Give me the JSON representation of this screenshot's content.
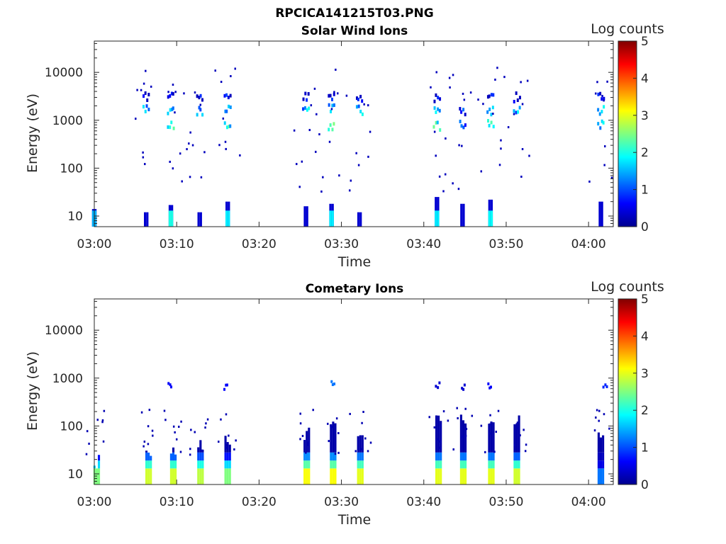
{
  "figure_title": "RPCICA141215T03.PNG",
  "chart_data": [
    {
      "type": "heatmap",
      "title": "Solar Wind Ions",
      "xlabel": "Time",
      "ylabel": "Energy (eV)",
      "x_ticks": [
        "03:00",
        "03:10",
        "03:20",
        "03:30",
        "03:40",
        "03:50",
        "04:00"
      ],
      "xlim": [
        "03:00",
        "04:03"
      ],
      "y_ticks": [
        "10",
        "100",
        "1000",
        "10000"
      ],
      "ylim": [
        6,
        45000
      ],
      "yscale": "log",
      "colorbar": {
        "label": "Log counts",
        "range": [
          0,
          5
        ],
        "ticks": [
          "0",
          "1",
          "2",
          "3",
          "4",
          "5"
        ],
        "colormap": "jet"
      },
      "bursts": [
        {
          "time": "03:06.3",
          "cells": [
            [
              3000,
              1
            ],
            [
              1700,
              2
            ]
          ]
        },
        {
          "time": "03:09.3",
          "cells": [
            [
              750,
              2.5
            ],
            [
              1700,
              2
            ],
            [
              3000,
              1
            ]
          ]
        },
        {
          "time": "03:12.8",
          "cells": [
            [
              1600,
              2
            ],
            [
              3000,
              1
            ]
          ]
        },
        {
          "time": "03:16.2",
          "cells": [
            [
              800,
              2.5
            ],
            [
              1700,
              2
            ],
            [
              3000,
              1
            ]
          ]
        },
        {
          "time": "03:25.7",
          "cells": [
            [
              1600,
              2
            ],
            [
              3000,
              1
            ]
          ]
        },
        {
          "time": "03:28.8",
          "cells": [
            [
              750,
              3
            ],
            [
              1700,
              2
            ],
            [
              3000,
              1
            ]
          ]
        },
        {
          "time": "03:32.2",
          "cells": [
            [
              1600,
              2
            ],
            [
              3000,
              1
            ]
          ]
        },
        {
          "time": "03:41.6",
          "cells": [
            [
              750,
              2.5
            ],
            [
              1600,
              2
            ],
            [
              3000,
              1
            ]
          ]
        },
        {
          "time": "03:44.7",
          "cells": [
            [
              800,
              1.5
            ],
            [
              1600,
              1.5
            ]
          ]
        },
        {
          "time": "03:48.1",
          "cells": [
            [
              800,
              2.8
            ],
            [
              1600,
              2
            ],
            [
              3000,
              1
            ]
          ]
        },
        {
          "time": "03:51.3",
          "cells": [
            [
              1600,
              2
            ],
            [
              3000,
              1
            ]
          ]
        },
        {
          "time": "04:01.5",
          "cells": [
            [
              800,
              2
            ],
            [
              1600,
              2
            ],
            [
              3000,
              1
            ]
          ]
        }
      ],
      "low_energy_bursts": [
        {
          "time": "03:00.0",
          "level": 1.5,
          "top": 14
        },
        {
          "time": "03:06.3",
          "level": 0.5,
          "top": 12
        },
        {
          "time": "03:09.3",
          "level": 2.0,
          "top": 17
        },
        {
          "time": "03:12.8",
          "level": 0.8,
          "top": 12
        },
        {
          "time": "03:16.2",
          "level": 1.8,
          "top": 20
        },
        {
          "time": "03:25.7",
          "level": 1.0,
          "top": 16
        },
        {
          "time": "03:28.8",
          "level": 1.8,
          "top": 18
        },
        {
          "time": "03:32.2",
          "level": 0.8,
          "top": 12
        },
        {
          "time": "03:41.6",
          "level": 1.8,
          "top": 25
        },
        {
          "time": "03:44.7",
          "level": 0.5,
          "top": 18
        },
        {
          "time": "03:48.1",
          "level": 1.9,
          "top": 22
        },
        {
          "time": "04:01.5",
          "level": 0.6,
          "top": 20
        }
      ]
    },
    {
      "type": "heatmap",
      "title": "Cometary Ions",
      "xlabel": "Time",
      "ylabel": "Energy (eV)",
      "x_ticks": [
        "03:00",
        "03:10",
        "03:20",
        "03:30",
        "03:40",
        "03:50",
        "04:00"
      ],
      "xlim": [
        "03:00",
        "04:03"
      ],
      "y_ticks": [
        "10",
        "100",
        "1000",
        "10000"
      ],
      "ylim": [
        6,
        45000
      ],
      "yscale": "log",
      "colorbar": {
        "label": "Log counts",
        "range": [
          0,
          5
        ],
        "ticks": [
          "0",
          "1",
          "2",
          "3",
          "4",
          "5"
        ],
        "colormap": "jet"
      },
      "columns": [
        {
          "time": "03:00.3",
          "top": 18,
          "peak": 2.5
        },
        {
          "time": "03:06.6",
          "top": 30,
          "peak": 2.9
        },
        {
          "time": "03:09.6",
          "top": 35,
          "peak": 2.9
        },
        {
          "time": "03:12.9",
          "top": 40,
          "peak": 2.8
        },
        {
          "time": "03:16.2",
          "top": 55,
          "peak": 2.5
        },
        {
          "time": "03:25.8",
          "top": 70,
          "peak": 3.1
        },
        {
          "time": "03:29.0",
          "top": 90,
          "peak": 3.1
        },
        {
          "time": "03:32.3",
          "top": 80,
          "peak": 3.0
        },
        {
          "time": "03:41.8",
          "top": 120,
          "peak": 3.0
        },
        {
          "time": "03:44.8",
          "top": 140,
          "peak": 3.0
        },
        {
          "time": "03:48.2",
          "top": 110,
          "peak": 3.0
        },
        {
          "time": "03:51.3",
          "top": 130,
          "peak": 2.9
        },
        {
          "time": "04:01.5",
          "top": 60,
          "peak": 1.2
        }
      ],
      "high_energy_bursts": [
        {
          "time": "03:09.2",
          "energy": 700,
          "level": 0.6
        },
        {
          "time": "03:16.0",
          "energy": 650,
          "level": 0.6
        },
        {
          "time": "03:29.0",
          "energy": 750,
          "level": 1.2
        },
        {
          "time": "03:41.7",
          "energy": 700,
          "level": 0.4
        },
        {
          "time": "03:44.8",
          "energy": 650,
          "level": 0.4
        },
        {
          "time": "03:48.0",
          "energy": 700,
          "level": 0.6
        },
        {
          "time": "04:02.0",
          "energy": 700,
          "level": 0.8
        }
      ]
    }
  ]
}
